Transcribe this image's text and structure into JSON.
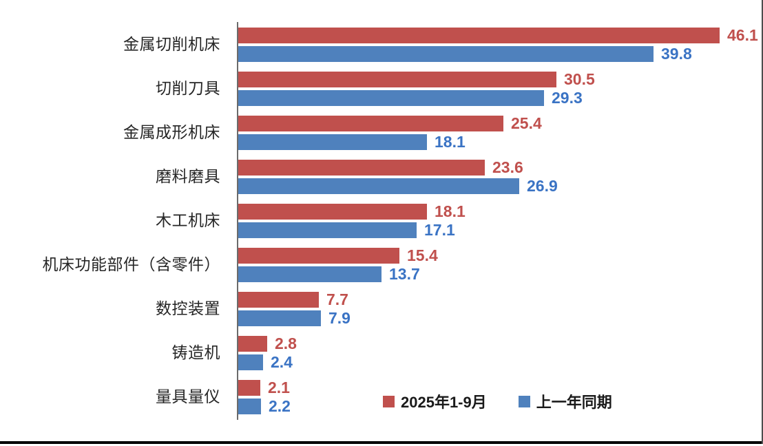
{
  "chart_data": {
    "type": "bar",
    "orientation": "horizontal",
    "title": "",
    "categories": [
      "金属切削机床",
      "切削刀具",
      "金属成形机床",
      "磨料磨具",
      "木工机床",
      "机床功能部件（含零件）",
      "数控装置",
      "铸造机",
      "量具量仪"
    ],
    "series": [
      {
        "name": "2025年1-9月",
        "color": "#C0504D",
        "label_color": "#C0504D",
        "values": [
          46.1,
          30.5,
          25.4,
          23.6,
          18.1,
          15.4,
          7.7,
          2.8,
          2.1
        ]
      },
      {
        "name": "上一年同期",
        "color": "#4F81BD",
        "label_color": "#3A73C4",
        "values": [
          39.8,
          29.3,
          18.1,
          26.9,
          17.1,
          13.7,
          7.9,
          2.4,
          2.2
        ]
      }
    ],
    "xlim": [
      0,
      46.1
    ],
    "data_labels": true,
    "grid": false,
    "legend_position": "bottom",
    "axis_color": "#6B6B6B"
  },
  "frame": {
    "bottom_rule_color": "#000000",
    "right_rule_color": "#4D4D4D"
  }
}
